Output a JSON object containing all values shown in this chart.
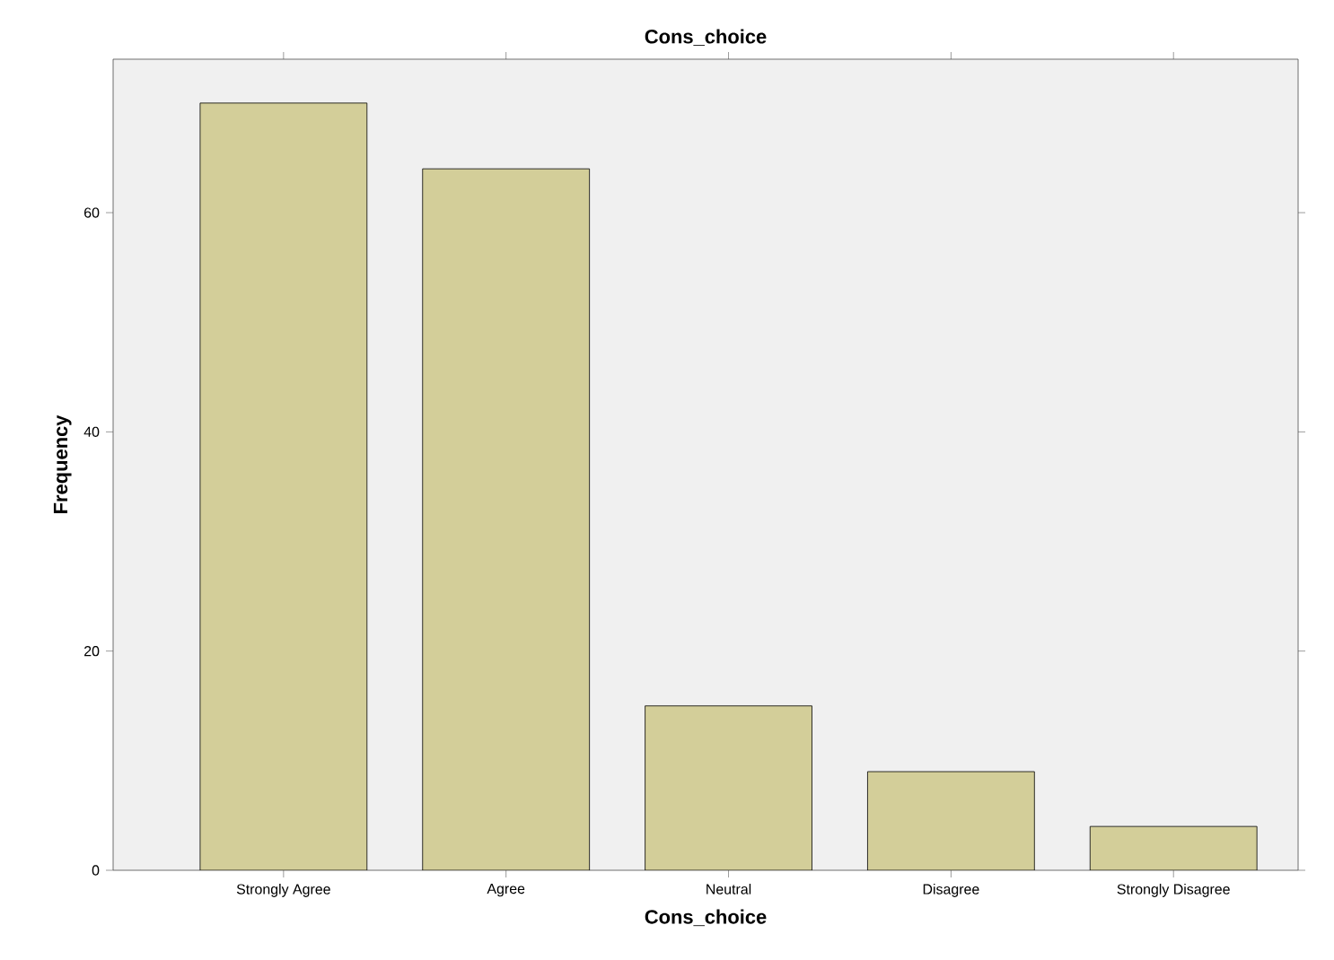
{
  "chart_data": {
    "type": "bar",
    "title": "Cons_choice",
    "xlabel": "Cons_choice",
    "ylabel": "Frequency",
    "categories": [
      "Strongly Agree",
      "Agree",
      "Neutral",
      "Disagree",
      "Strongly Disagree"
    ],
    "values": [
      70,
      64,
      15,
      9,
      4
    ],
    "color": "#d3ce99",
    "ylim": [
      0,
      74
    ],
    "yticks": [
      0,
      20,
      40,
      60
    ],
    "grid": false
  }
}
